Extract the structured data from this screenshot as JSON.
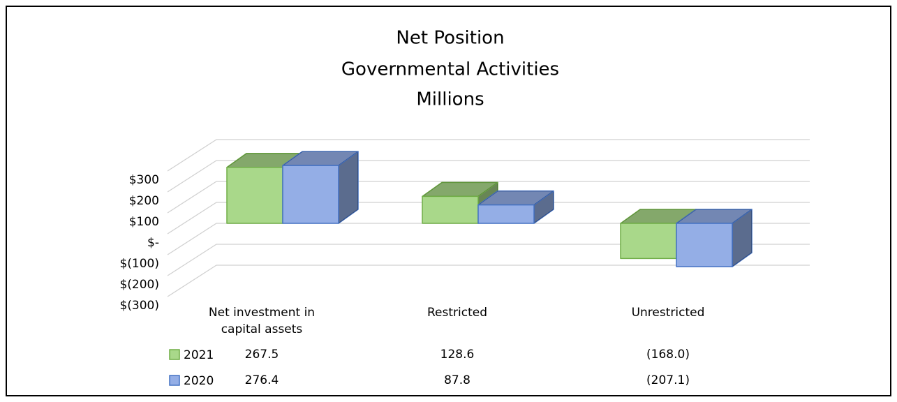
{
  "chart_data": {
    "type": "bar3d",
    "title": [
      "Net Position",
      "Governmental  Activities",
      "Millions"
    ],
    "categories": [
      "Net investment in capital assets",
      "Restricted",
      "Unrestricted"
    ],
    "series": [
      {
        "name": "2021",
        "color": "#a9d88a",
        "edge": "#70ad47",
        "values": [
          267.5,
          128.6,
          -168.0
        ],
        "value_labels": [
          "267.5",
          "128.6",
          "(168.0)"
        ]
      },
      {
        "name": "2020",
        "color": "#94aee6",
        "edge": "#4472c4",
        "values": [
          276.4,
          87.8,
          -207.1
        ],
        "value_labels": [
          "276.4",
          "87.8",
          "(207.1)"
        ]
      }
    ],
    "ylim": [
      -300,
      300
    ],
    "yticks": [
      {
        "value": 300,
        "label": "$300"
      },
      {
        "value": 200,
        "label": "$200"
      },
      {
        "value": 100,
        "label": "$100"
      },
      {
        "value": 0,
        "label": "$-"
      },
      {
        "value": -100,
        "label": "$(100)"
      },
      {
        "value": -200,
        "label": "$(200)"
      },
      {
        "value": -300,
        "label": "$(300)"
      }
    ],
    "grid": true,
    "data_table": true
  }
}
